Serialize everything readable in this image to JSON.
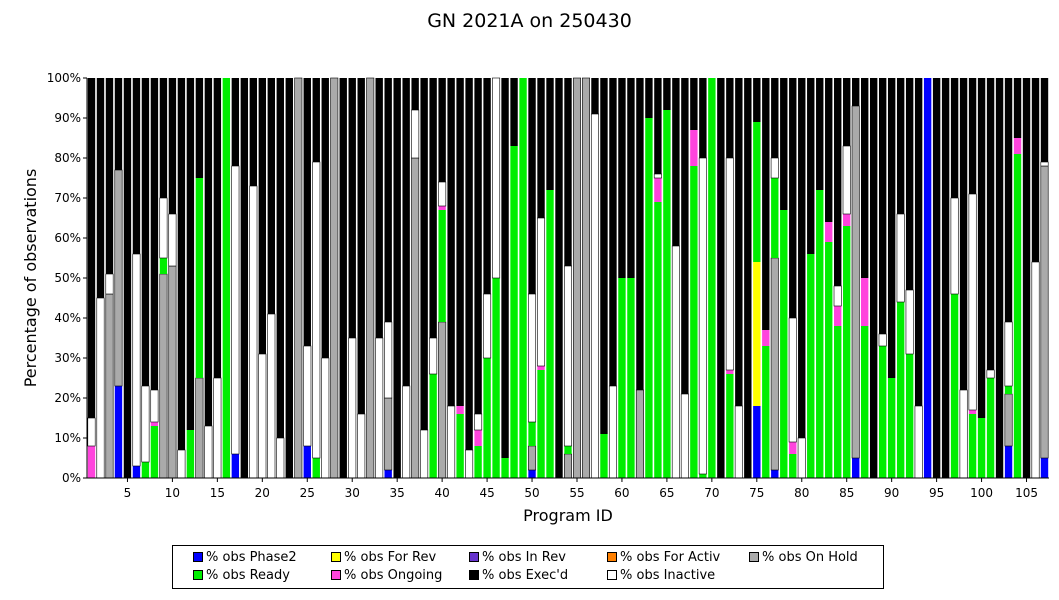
{
  "chart_data": {
    "type": "bar",
    "stacked": true,
    "title": "GN 2021A on 250430",
    "xlabel": "Program ID",
    "ylabel": "Percentage of observations",
    "ylim": [
      0,
      100
    ],
    "x_ticks": [
      5,
      10,
      15,
      20,
      25,
      30,
      35,
      40,
      45,
      50,
      55,
      60,
      65,
      70,
      75,
      80,
      85,
      90,
      95,
      100,
      105
    ],
    "y_tick_labels": [
      "0%",
      "10%",
      "20%",
      "30%",
      "40%",
      "50%",
      "60%",
      "70%",
      "80%",
      "90%",
      "100%"
    ],
    "legend_position": "bottom",
    "colors": {
      "Phase2": "#0000ff",
      "ForRev": "#ffff00",
      "InRev": "#6633cc",
      "ForActiv": "#ff8000",
      "OnHold": "#aaaaaa",
      "Ready": "#00ee00",
      "Ongoing": "#ff44dd",
      "Execd": "#000000",
      "Inactive": "#ffffff"
    },
    "legend": [
      {
        "key": "Phase2",
        "label": "% obs Phase2"
      },
      {
        "key": "ForRev",
        "label": "% obs For Rev"
      },
      {
        "key": "InRev",
        "label": "% obs In Rev"
      },
      {
        "key": "ForActiv",
        "label": "% obs For Activ"
      },
      {
        "key": "OnHold",
        "label": "% obs On Hold"
      },
      {
        "key": "Ready",
        "label": "% obs Ready"
      },
      {
        "key": "Ongoing",
        "label": "% obs Ongoing"
      },
      {
        "key": "Execd",
        "label": "% obs Exec'd"
      },
      {
        "key": "Inactive",
        "label": "% obs Inactive"
      }
    ],
    "stack_order": [
      "Phase2",
      "ForRev",
      "InRev",
      "ForActiv",
      "OnHold",
      "Ready",
      "Ongoing",
      "Inactive",
      "Execd"
    ],
    "programs": [
      {
        "id": 1,
        "Ongoing": 8,
        "Inactive": 7
      },
      {
        "id": 2,
        "Inactive": 45
      },
      {
        "id": 3,
        "OnHold": 46,
        "Inactive": 5
      },
      {
        "id": 4,
        "Phase2": 23,
        "OnHold": 54
      },
      {
        "id": 5,
        "Inactive": 0
      },
      {
        "id": 6,
        "Phase2": 3,
        "Inactive": 53
      },
      {
        "id": 7,
        "Ready": 4,
        "Inactive": 19
      },
      {
        "id": 8,
        "Ready": 13,
        "Ongoing": 1,
        "Inactive": 8
      },
      {
        "id": 9,
        "OnHold": 51,
        "Ready": 4,
        "Inactive": 15
      },
      {
        "id": 10,
        "OnHold": 53,
        "Inactive": 13
      },
      {
        "id": 11,
        "Inactive": 7
      },
      {
        "id": 12,
        "Ready": 12
      },
      {
        "id": 13,
        "OnHold": 25,
        "Ready": 50
      },
      {
        "id": 14,
        "Inactive": 13
      },
      {
        "id": 15,
        "Inactive": 25
      },
      {
        "id": 16,
        "Ready": 100
      },
      {
        "id": 17,
        "Phase2": 6,
        "Inactive": 72,
        "OnHold": 0
      },
      {
        "id": 18,
        "Inactive": 0
      },
      {
        "id": 19,
        "Inactive": 73
      },
      {
        "id": 20,
        "Inactive": 31
      },
      {
        "id": 21,
        "Inactive": 41
      },
      {
        "id": 22,
        "Inactive": 10
      },
      {
        "id": 23,
        "Inactive": 0
      },
      {
        "id": 24,
        "OnHold": 100
      },
      {
        "id": 25,
        "Phase2": 8,
        "Inactive": 25
      },
      {
        "id": 26,
        "Ready": 5,
        "Inactive": 74
      },
      {
        "id": 27,
        "Inactive": 30
      },
      {
        "id": 28,
        "OnHold": 100
      },
      {
        "id": 29,
        "Inactive": 0
      },
      {
        "id": 30,
        "Inactive": 35
      },
      {
        "id": 31,
        "Inactive": 16
      },
      {
        "id": 32,
        "OnHold": 100
      },
      {
        "id": 33,
        "Inactive": 35
      },
      {
        "id": 34,
        "Phase2": 2,
        "OnHold": 18,
        "Inactive": 19
      },
      {
        "id": 35,
        "Inactive": 0
      },
      {
        "id": 36,
        "Inactive": 23
      },
      {
        "id": 37,
        "OnHold": 80,
        "Inactive": 12
      },
      {
        "id": 38,
        "Inactive": 12
      },
      {
        "id": 39,
        "Ready": 26,
        "Inactive": 9
      },
      {
        "id": 40,
        "OnHold": 39,
        "Ready": 28,
        "Ongoing": 1,
        "Inactive": 6
      },
      {
        "id": 41,
        "Inactive": 18
      },
      {
        "id": 42,
        "Ready": 16,
        "Ongoing": 2
      },
      {
        "id": 43,
        "Inactive": 7
      },
      {
        "id": 44,
        "Ready": 8,
        "Ongoing": 4,
        "Inactive": 4
      },
      {
        "id": 45,
        "Ready": 30,
        "Inactive": 16
      },
      {
        "id": 46,
        "Ready": 50,
        "Inactive": 50
      },
      {
        "id": 47,
        "Ready": 5
      },
      {
        "id": 48,
        "Ready": 83
      },
      {
        "id": 49,
        "Ready": 100
      },
      {
        "id": 50,
        "Phase2": 2,
        "OnHold": 6,
        "Ready": 6,
        "Inactive": 32
      },
      {
        "id": 51,
        "Ready": 27,
        "Ongoing": 1,
        "Inactive": 37
      },
      {
        "id": 52,
        "Ready": 72
      },
      {
        "id": 53,
        "Inactive": 0
      },
      {
        "id": 54,
        "OnHold": 6,
        "Ready": 2,
        "Inactive": 45
      },
      {
        "id": 55,
        "OnHold": 100
      },
      {
        "id": 56,
        "OnHold": 100
      },
      {
        "id": 57,
        "Inactive": 91
      },
      {
        "id": 58,
        "Ready": 11
      },
      {
        "id": 59,
        "Inactive": 23
      },
      {
        "id": 60,
        "Ready": 50
      },
      {
        "id": 61,
        "Ready": 50
      },
      {
        "id": 62,
        "OnHold": 22
      },
      {
        "id": 63,
        "Ready": 90
      },
      {
        "id": 64,
        "Ready": 69,
        "Ongoing": 6,
        "Inactive": 1
      },
      {
        "id": 65,
        "Ready": 92
      },
      {
        "id": 66,
        "Inactive": 58
      },
      {
        "id": 67,
        "Inactive": 21
      },
      {
        "id": 68,
        "Ready": 78,
        "Ongoing": 9
      },
      {
        "id": 69,
        "Ready": 1,
        "Inactive": 79
      },
      {
        "id": 70,
        "Ready": 100
      },
      {
        "id": 71,
        "Inactive": 0
      },
      {
        "id": 72,
        "Ready": 26,
        "Ongoing": 1,
        "Inactive": 53
      },
      {
        "id": 73,
        "Inactive": 18
      },
      {
        "id": 74,
        "Inactive": 0
      },
      {
        "id": 75,
        "Phase2": 18,
        "ForRev": 36,
        "Ready": 35
      },
      {
        "id": 76,
        "Ready": 33,
        "Ongoing": 4
      },
      {
        "id": 77,
        "Phase2": 2,
        "OnHold": 53,
        "Ready": 20,
        "Inactive": 5
      },
      {
        "id": 78,
        "Ready": 67
      },
      {
        "id": 79,
        "Ready": 6,
        "Ongoing": 3,
        "Inactive": 31
      },
      {
        "id": 80,
        "Inactive": 10
      },
      {
        "id": 81,
        "Ready": 56
      },
      {
        "id": 82,
        "Ready": 72
      },
      {
        "id": 83,
        "Ready": 59,
        "Ongoing": 5
      },
      {
        "id": 84,
        "Ready": 38,
        "Ongoing": 5,
        "Inactive": 5
      },
      {
        "id": 85,
        "Ready": 63,
        "Ongoing": 3,
        "Inactive": 17
      },
      {
        "id": 86,
        "Phase2": 5,
        "OnHold": 88
      },
      {
        "id": 87,
        "Ready": 38,
        "Ongoing": 12
      },
      {
        "id": 88,
        "Inactive": 0
      },
      {
        "id": 89,
        "Ready": 33,
        "Inactive": 3
      },
      {
        "id": 90,
        "Ready": 25
      },
      {
        "id": 91,
        "Ready": 44,
        "Inactive": 22
      },
      {
        "id": 92,
        "Ready": 31,
        "Inactive": 16
      },
      {
        "id": 93,
        "Inactive": 18
      },
      {
        "id": 94,
        "Phase2": 100
      },
      {
        "id": 95,
        "Inactive": 0
      },
      {
        "id": 96,
        "Inactive": 0
      },
      {
        "id": 97,
        "Ready": 46,
        "Inactive": 24
      },
      {
        "id": 98,
        "Inactive": 22
      },
      {
        "id": 99,
        "Ready": 16,
        "Ongoing": 1,
        "Inactive": 54
      },
      {
        "id": 100,
        "Ready": 15
      },
      {
        "id": 101,
        "Ready": 25,
        "Inactive": 2
      },
      {
        "id": 102,
        "Inactive": 0
      },
      {
        "id": 103,
        "Phase2": 8,
        "OnHold": 13,
        "Ready": 2,
        "Inactive": 16
      },
      {
        "id": 104,
        "Ready": 81,
        "Ongoing": 4
      },
      {
        "id": 105,
        "Inactive": 0
      },
      {
        "id": 106,
        "Inactive": 54
      },
      {
        "id": 107,
        "Phase2": 5,
        "OnHold": 73,
        "Inactive": 1
      }
    ]
  }
}
